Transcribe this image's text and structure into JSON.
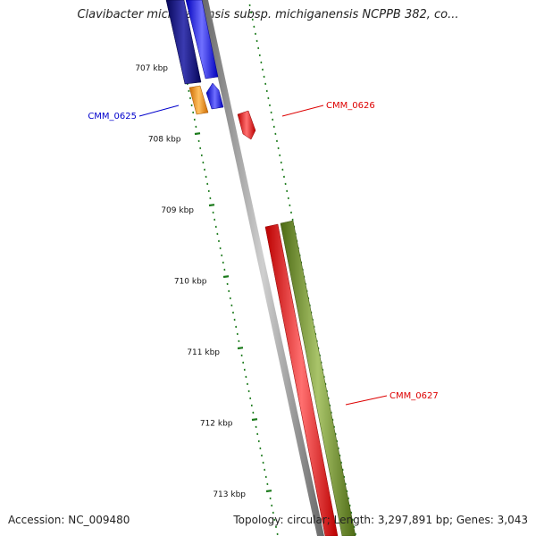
{
  "title": "Clavibacter michiganensis subsp. michiganensis NCPPB 382, co...",
  "footer": {
    "accession": "Accession: NC_009480",
    "topology": "Topology: circular; Length: 3,297,891 bp; Genes: 3,043"
  },
  "scale_labels": [
    "707 kbp",
    "708 kbp",
    "709 kbp",
    "710 kbp",
    "711 kbp",
    "712 kbp",
    "713 kbp"
  ],
  "gene_labels": [
    {
      "text": "CMM_0625",
      "color": "#0000cc"
    },
    {
      "text": "CMM_0626",
      "color": "#dd0000"
    },
    {
      "text": "CMM_0627",
      "color": "#dd0000"
    }
  ],
  "colors": {
    "backbone": "#888888",
    "reverse_strand_dark": "#0a0a80",
    "reverse_strand": "#1a1aee",
    "orange_feature": "#ee8800",
    "forward_strand": "#ee0000",
    "olive_feature": "#6b8e23",
    "tick_green": "#1a7a1a"
  }
}
